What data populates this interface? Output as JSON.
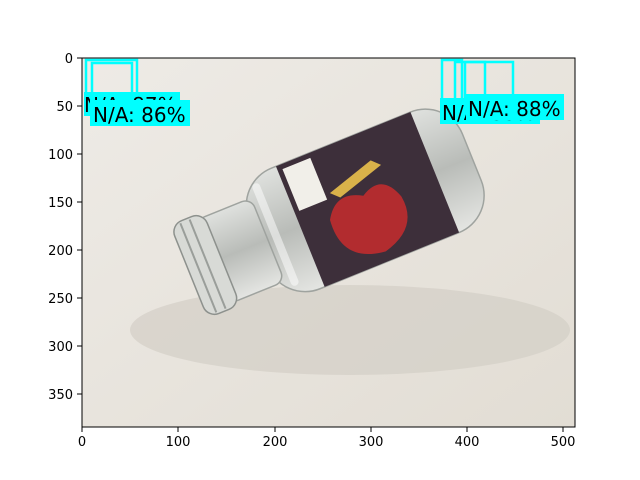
{
  "figure": {
    "x_ticks": [
      "0",
      "100",
      "200",
      "300",
      "400",
      "500"
    ],
    "y_ticks": [
      "0",
      "50",
      "100",
      "150",
      "200",
      "250",
      "300",
      "350"
    ],
    "box_color": "#00ffff",
    "photo_colors": {
      "background": "#e9e5de",
      "jar_glass": "#c9cbc8",
      "jar_label": "#3d2f3a",
      "label_red": "#b22c2f",
      "label_gold": "#d9b24a"
    }
  },
  "detections": [
    {
      "label": "N/A: 87%"
    },
    {
      "label": "N/A: 86%"
    },
    {
      "label": "N/A: 88%"
    },
    {
      "label": "N/A: 88%"
    }
  ]
}
